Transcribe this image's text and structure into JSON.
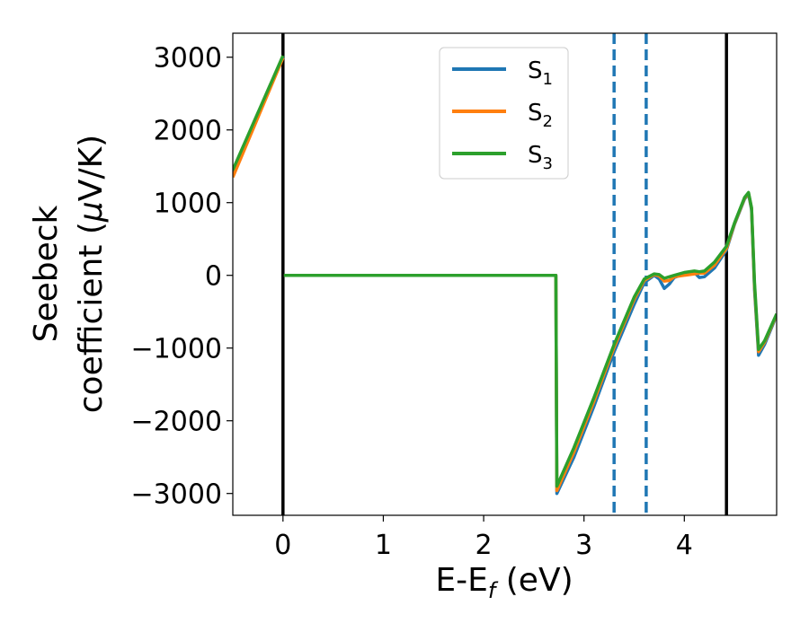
{
  "chart_data": {
    "type": "line",
    "title": "",
    "xlabel": "E-E",
    "xlabel_sub": "f",
    "xlabel_unit": " (eV)",
    "ylabel_line1": "Seebeck",
    "ylabel_line2": "coefficient  (",
    "ylabel_mu": "μ",
    "ylabel_unit": "V/K)",
    "xlim": [
      -0.5,
      4.92
    ],
    "ylim": [
      -3300,
      3330
    ],
    "x_ticks": [
      0,
      1,
      2,
      3,
      4
    ],
    "x_tick_labels": [
      "0",
      "1",
      "2",
      "3",
      "4"
    ],
    "y_ticks": [
      3000,
      2000,
      1000,
      0,
      -1000,
      -2000,
      -3000
    ],
    "y_tick_labels": [
      "3000",
      "2000",
      "1000",
      "0",
      "−1000",
      "−2000",
      "−3000"
    ],
    "grid": false,
    "legend_position": "top-center",
    "vertical_lines": [
      {
        "x": 0,
        "style": "solid",
        "color": "#000000"
      },
      {
        "x": 4.42,
        "style": "solid",
        "color": "#000000"
      },
      {
        "x": 3.3,
        "style": "dashed",
        "color": "#1f77b4"
      },
      {
        "x": 3.62,
        "style": "dashed",
        "color": "#1f77b4"
      }
    ],
    "series": [
      {
        "name": "S",
        "sub": "1",
        "color": "#1f77b4",
        "segments": [
          [
            [
              -0.5,
              1400
            ],
            [
              0,
              3000
            ]
          ],
          [
            [
              0.01,
              0
            ],
            [
              2.72,
              0
            ],
            [
              2.73,
              -3000
            ],
            [
              2.9,
              -2500
            ],
            [
              3.1,
              -1800
            ],
            [
              3.3,
              -1050
            ],
            [
              3.5,
              -400
            ],
            [
              3.6,
              -100
            ],
            [
              3.7,
              0
            ],
            [
              3.75,
              -50
            ],
            [
              3.8,
              -180
            ],
            [
              3.85,
              -120
            ],
            [
              3.9,
              -30
            ],
            [
              4.0,
              20
            ],
            [
              4.1,
              40
            ],
            [
              4.15,
              -30
            ],
            [
              4.2,
              -20
            ],
            [
              4.3,
              100
            ],
            [
              4.42,
              350
            ],
            [
              4.5,
              700
            ],
            [
              4.6,
              1050
            ],
            [
              4.64,
              1120
            ],
            [
              4.67,
              900
            ],
            [
              4.7,
              -200
            ],
            [
              4.74,
              -1100
            ],
            [
              4.8,
              -950
            ],
            [
              4.92,
              -550
            ]
          ]
        ]
      },
      {
        "name": "S",
        "sub": "2",
        "color": "#ff7f0e",
        "segments": [
          [
            [
              -0.5,
              1350
            ],
            [
              0,
              2990
            ]
          ],
          [
            [
              0.01,
              0
            ],
            [
              2.72,
              0
            ],
            [
              2.73,
              -2960
            ],
            [
              2.9,
              -2430
            ],
            [
              3.1,
              -1730
            ],
            [
              3.3,
              -990
            ],
            [
              3.5,
              -330
            ],
            [
              3.6,
              -70
            ],
            [
              3.7,
              10
            ],
            [
              3.75,
              -10
            ],
            [
              3.8,
              -80
            ],
            [
              3.85,
              -70
            ],
            [
              3.9,
              -20
            ],
            [
              4.0,
              0
            ],
            [
              4.1,
              20
            ],
            [
              4.15,
              30
            ],
            [
              4.2,
              30
            ],
            [
              4.3,
              140
            ],
            [
              4.42,
              370
            ],
            [
              4.5,
              710
            ],
            [
              4.6,
              1060
            ],
            [
              4.64,
              1130
            ],
            [
              4.67,
              920
            ],
            [
              4.7,
              -150
            ],
            [
              4.74,
              -1050
            ],
            [
              4.8,
              -920
            ],
            [
              4.92,
              -540
            ]
          ]
        ]
      },
      {
        "name": "S",
        "sub": "3",
        "color": "#2ca02c",
        "segments": [
          [
            [
              -0.5,
              1450
            ],
            [
              0,
              3020
            ]
          ],
          [
            [
              0.01,
              0
            ],
            [
              2.72,
              0
            ],
            [
              2.73,
              -2900
            ],
            [
              2.9,
              -2370
            ],
            [
              3.1,
              -1680
            ],
            [
              3.3,
              -950
            ],
            [
              3.5,
              -300
            ],
            [
              3.6,
              -50
            ],
            [
              3.7,
              20
            ],
            [
              3.75,
              10
            ],
            [
              3.8,
              -40
            ],
            [
              3.85,
              -20
            ],
            [
              3.9,
              0
            ],
            [
              4.0,
              40
            ],
            [
              4.1,
              60
            ],
            [
              4.15,
              50
            ],
            [
              4.2,
              60
            ],
            [
              4.3,
              180
            ],
            [
              4.42,
              400
            ],
            [
              4.5,
              720
            ],
            [
              4.6,
              1070
            ],
            [
              4.64,
              1140
            ],
            [
              4.67,
              930
            ],
            [
              4.7,
              -100
            ],
            [
              4.74,
              -1020
            ],
            [
              4.8,
              -900
            ],
            [
              4.92,
              -530
            ]
          ]
        ]
      }
    ]
  }
}
